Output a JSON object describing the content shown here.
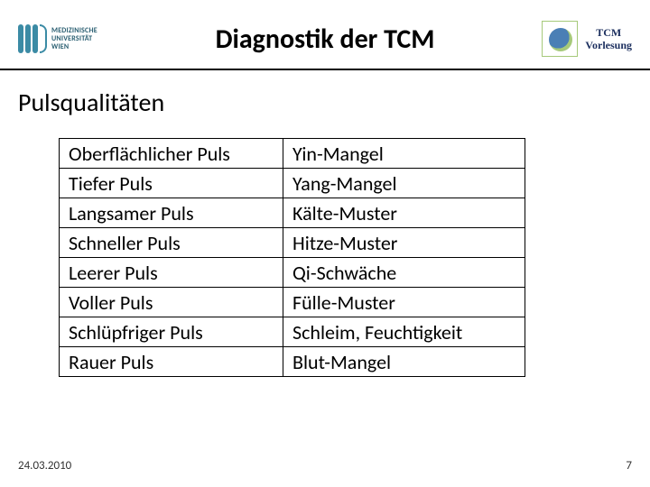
{
  "header": {
    "logo_left_text": "MEDIZINISCHE\nUNIVERSITÄT\nWIEN",
    "title": "Diagnostik der TCM",
    "logo_right_line1": "TCM",
    "logo_right_line2": "Vorlesung"
  },
  "subtitle": "Pulsqualitäten",
  "table": {
    "rows": [
      {
        "c1": "Oberflächlicher Puls",
        "c2": "Yin-Mangel"
      },
      {
        "c1": "Tiefer Puls",
        "c2": "Yang-Mangel"
      },
      {
        "c1": "Langsamer Puls",
        "c2": "Kälte-Muster"
      },
      {
        "c1": "Schneller Puls",
        "c2": "Hitze-Muster"
      },
      {
        "c1": "Leerer Puls",
        "c2": "Qi-Schwäche"
      },
      {
        "c1": "Voller Puls",
        "c2": "Fülle-Muster"
      },
      {
        "c1": "Schlüpfriger Puls",
        "c2": "Schleim, Feuchtigkeit"
      },
      {
        "c1": "Rauer Puls",
        "c2": "Blut-Mangel"
      }
    ],
    "col1_width": 248,
    "col2_width": 268,
    "border_color": "#000000",
    "font_size": 22,
    "text_color": "#000000"
  },
  "footer": {
    "date": "24.03.2010",
    "page": "7"
  },
  "colors": {
    "background": "#ffffff",
    "brand_blue": "#3b8ba5",
    "header_rule": "#000000"
  }
}
